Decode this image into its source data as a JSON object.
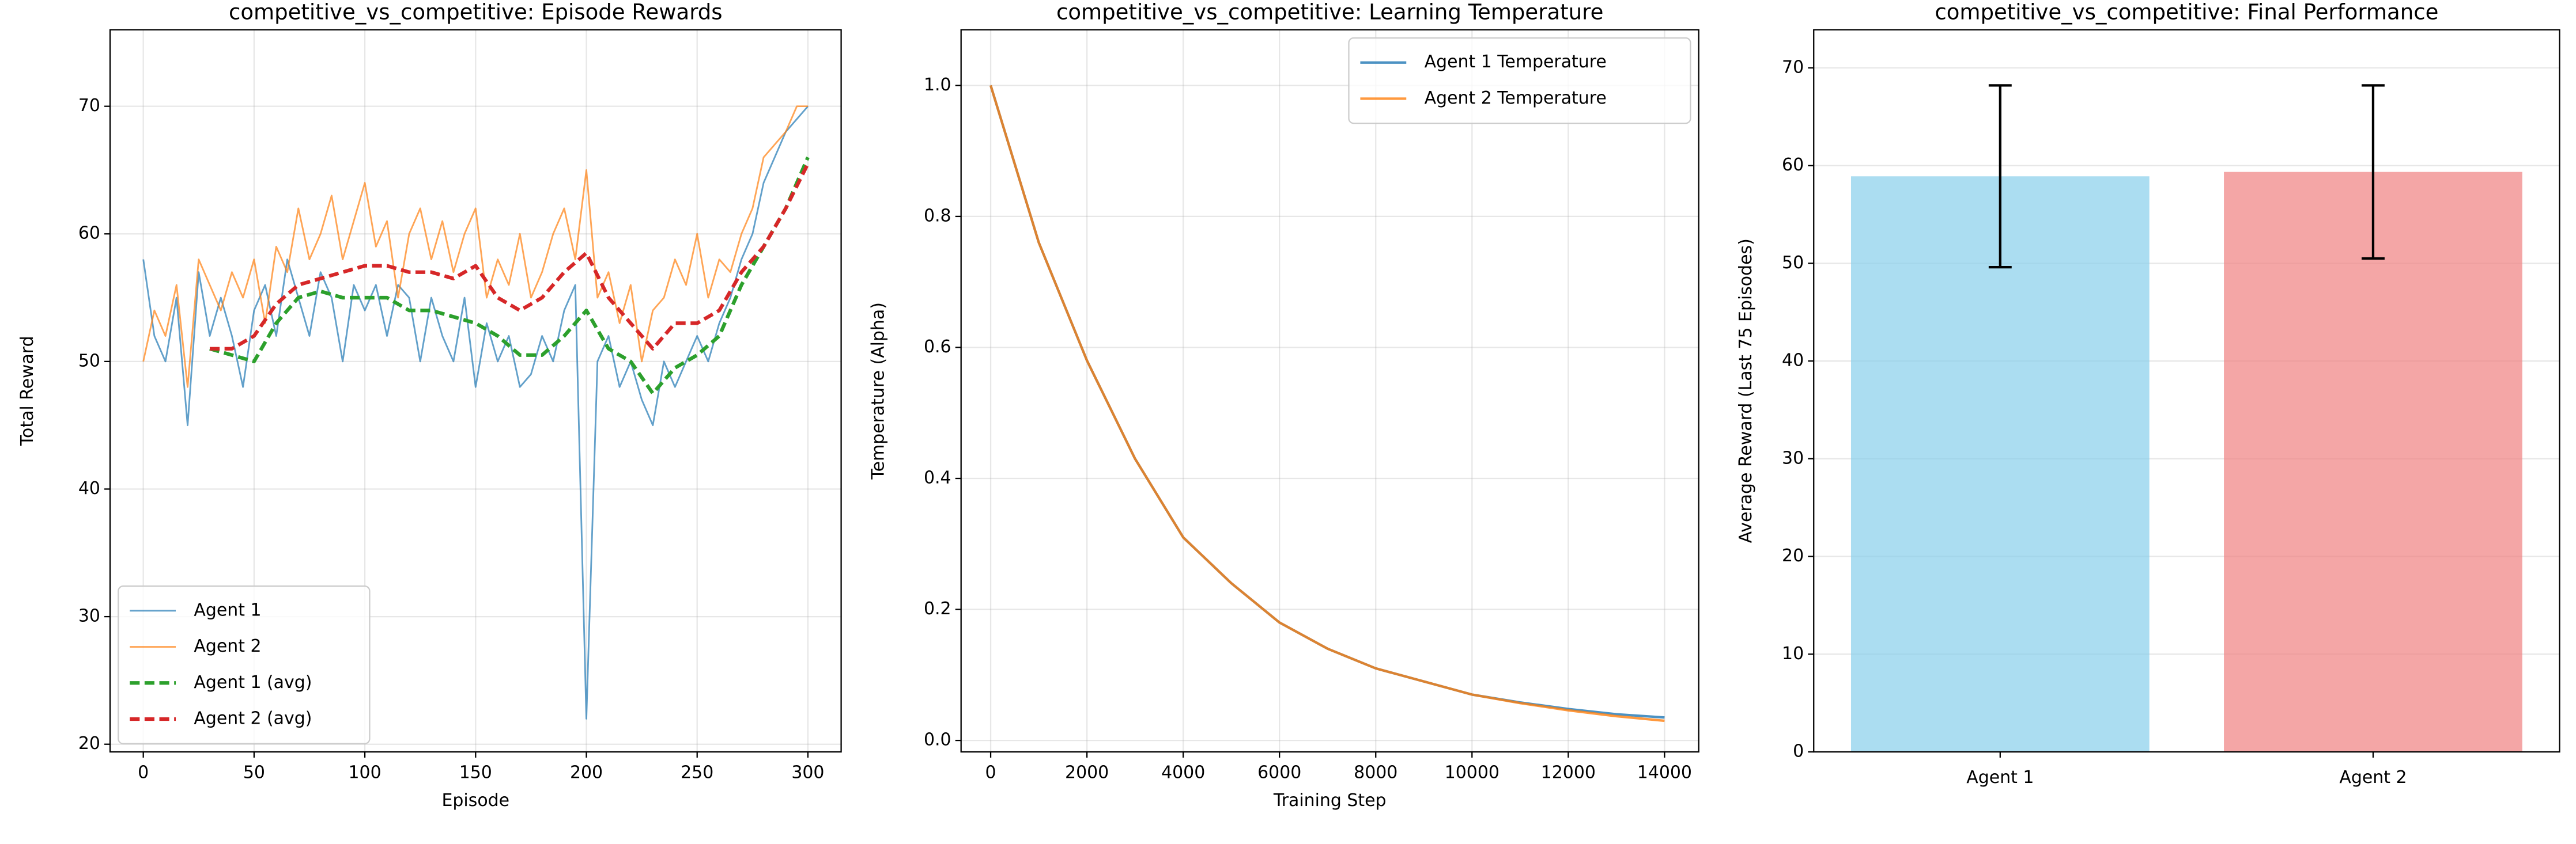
{
  "chart_data": [
    {
      "type": "line",
      "title": "competitive_vs_competitive: Episode Rewards",
      "xlabel": "Episode",
      "ylabel": "Total Reward",
      "xlim": [
        -15,
        315
      ],
      "ylim": [
        19.4,
        76
      ],
      "xticks": [
        0,
        50,
        100,
        150,
        200,
        250,
        300
      ],
      "yticks": [
        20,
        30,
        40,
        50,
        60,
        70
      ],
      "grid": true,
      "legend": "lower left",
      "series": [
        {
          "name": "Agent 1",
          "color": "#1f77b4",
          "opacity": 0.7,
          "linewidth": 1,
          "x": [
            0,
            5,
            10,
            15,
            20,
            25,
            30,
            35,
            40,
            45,
            50,
            55,
            60,
            65,
            70,
            75,
            80,
            85,
            90,
            95,
            100,
            105,
            110,
            115,
            120,
            125,
            130,
            135,
            140,
            145,
            150,
            155,
            160,
            165,
            170,
            175,
            180,
            185,
            190,
            195,
            200,
            205,
            210,
            215,
            220,
            225,
            230,
            235,
            240,
            245,
            250,
            255,
            260,
            265,
            270,
            275,
            280,
            285,
            290,
            295,
            300
          ],
          "values": [
            58,
            52,
            50,
            55,
            45,
            57,
            52,
            55,
            52,
            48,
            54,
            56,
            52,
            58,
            55,
            52,
            57,
            55,
            50,
            56,
            54,
            56,
            52,
            56,
            55,
            50,
            55,
            52,
            50,
            55,
            48,
            53,
            50,
            52,
            48,
            49,
            52,
            50,
            54,
            56,
            22,
            50,
            52,
            48,
            50,
            47,
            45,
            50,
            48,
            50,
            52,
            50,
            53,
            55,
            58,
            60,
            64,
            66,
            68,
            69,
            70
          ]
        },
        {
          "name": "Agent 2",
          "color": "#ff7f0e",
          "opacity": 0.7,
          "linewidth": 1,
          "x": [
            0,
            5,
            10,
            15,
            20,
            25,
            30,
            35,
            40,
            45,
            50,
            55,
            60,
            65,
            70,
            75,
            80,
            85,
            90,
            95,
            100,
            105,
            110,
            115,
            120,
            125,
            130,
            135,
            140,
            145,
            150,
            155,
            160,
            165,
            170,
            175,
            180,
            185,
            190,
            195,
            200,
            205,
            210,
            215,
            220,
            225,
            230,
            235,
            240,
            245,
            250,
            255,
            260,
            265,
            270,
            275,
            280,
            285,
            290,
            295,
            300
          ],
          "values": [
            50,
            54,
            52,
            56,
            48,
            58,
            56,
            54,
            57,
            55,
            58,
            53,
            59,
            57,
            62,
            58,
            60,
            63,
            58,
            61,
            64,
            59,
            61,
            55,
            60,
            62,
            58,
            61,
            57,
            60,
            62,
            55,
            58,
            56,
            60,
            55,
            57,
            60,
            62,
            58,
            65,
            55,
            57,
            53,
            56,
            50,
            54,
            55,
            58,
            56,
            60,
            55,
            58,
            57,
            60,
            62,
            66,
            67,
            68,
            70,
            70
          ]
        },
        {
          "name": "Agent 1 (avg)",
          "color": "#2ca02c",
          "opacity": 1,
          "linewidth": 2.2,
          "linestyle": "dashed",
          "x": [
            30,
            40,
            50,
            60,
            70,
            80,
            90,
            100,
            110,
            120,
            130,
            140,
            150,
            160,
            170,
            180,
            190,
            200,
            210,
            220,
            230,
            240,
            250,
            260,
            270,
            280,
            290,
            300
          ],
          "values": [
            51,
            50.5,
            50,
            53,
            55,
            55.5,
            55,
            55,
            55,
            54,
            54,
            53.5,
            53,
            52,
            50.5,
            50.5,
            52,
            54,
            51,
            50,
            47.5,
            49.5,
            50.5,
            52,
            56,
            59,
            62,
            66
          ]
        },
        {
          "name": "Agent 2 (avg)",
          "color": "#d62728",
          "opacity": 1,
          "linewidth": 2.2,
          "linestyle": "dashed",
          "x": [
            30,
            40,
            50,
            60,
            70,
            80,
            90,
            100,
            110,
            120,
            130,
            140,
            150,
            160,
            170,
            180,
            190,
            200,
            210,
            220,
            230,
            240,
            250,
            260,
            270,
            280,
            290,
            300
          ],
          "values": [
            51,
            51,
            52,
            54.5,
            56,
            56.5,
            57,
            57.5,
            57.5,
            57,
            57,
            56.5,
            57.5,
            55,
            54,
            55,
            57,
            58.5,
            55,
            53,
            51,
            53,
            53,
            54,
            57,
            59,
            62,
            65.5
          ]
        }
      ]
    },
    {
      "type": "line",
      "title": "competitive_vs_competitive: Learning Temperature",
      "xlabel": "Training Step",
      "ylabel": "Temperature (Alpha)",
      "xlim": [
        -615,
        14710
      ],
      "ylim": [
        -0.0175,
        1.085
      ],
      "xticks": [
        0,
        2000,
        4000,
        6000,
        8000,
        10000,
        12000,
        14000
      ],
      "yticks": [
        {
          "value": 0,
          "label": "0.0"
        },
        0.2,
        0.4,
        0.6,
        0.8,
        {
          "value": 1,
          "label": "1.0"
        }
      ],
      "grid": true,
      "legend": "upper right",
      "series": [
        {
          "name": "Agent 1 Temperature",
          "color": "#1f77b4",
          "opacity": 0.8,
          "linewidth": 1.5,
          "x": [
            0,
            1000,
            2000,
            3000,
            4000,
            5000,
            6000,
            7000,
            8000,
            9000,
            10000,
            11000,
            12000,
            13000,
            14000
          ],
          "values": [
            1.0,
            0.76,
            0.58,
            0.43,
            0.31,
            0.24,
            0.18,
            0.14,
            0.11,
            0.09,
            0.07,
            0.058,
            0.048,
            0.04,
            0.035
          ]
        },
        {
          "name": "Agent 2 Temperature",
          "color": "#ff7f0e",
          "opacity": 0.8,
          "linewidth": 1.5,
          "x": [
            0,
            1000,
            2000,
            3000,
            4000,
            5000,
            6000,
            7000,
            8000,
            9000,
            10000,
            11000,
            12000,
            13000,
            14000
          ],
          "values": [
            1.0,
            0.76,
            0.58,
            0.43,
            0.31,
            0.24,
            0.18,
            0.14,
            0.11,
            0.09,
            0.07,
            0.057,
            0.046,
            0.037,
            0.03
          ]
        }
      ]
    },
    {
      "type": "bar",
      "title": "competitive_vs_competitive: Final Performance",
      "ylabel": "Average Reward (Last 75 Episodes)",
      "categories": [
        "Agent 1",
        "Agent 2"
      ],
      "values": [
        58.9,
        59.35
      ],
      "errors": [
        9.3,
        8.85
      ],
      "colors": [
        "#87ceeb",
        "#f08080"
      ],
      "opacity": 0.7,
      "ylim": [
        0,
        73.9
      ],
      "yticks": [
        0,
        10,
        20,
        30,
        40,
        50,
        60,
        70
      ],
      "grid": "y"
    }
  ]
}
